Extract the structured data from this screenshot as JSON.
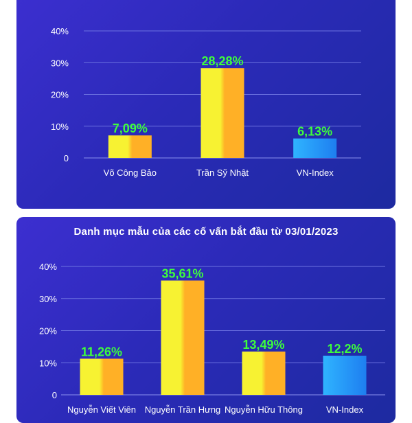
{
  "colors": {
    "card_bg_start": "#3c2fd0",
    "card_bg_end": "#1d2aa0",
    "data_label": "#3dfc3d",
    "bar_yellow_orange": [
      "#f7f232",
      "#ffb026"
    ],
    "bar_blue": [
      "#2fb4ff",
      "#1e7ef0"
    ]
  },
  "cards": [
    {
      "title": ""
    },
    {
      "title": "Danh mục mẫu của các cố vấn bắt đầu từ 03/01/2023"
    }
  ],
  "chart_data": [
    {
      "type": "bar",
      "title": "",
      "categories": [
        "Võ Công Bảo",
        "Trần Sỹ Nhật",
        "VN-Index"
      ],
      "values": [
        7.09,
        28.28,
        6.13
      ],
      "data_labels": [
        "7,09%",
        "28,28%",
        "6,13%"
      ],
      "bar_styles": [
        "yellow-orange",
        "yellow-orange",
        "blue"
      ],
      "yticks": [
        0,
        10,
        20,
        30,
        40
      ],
      "ytick_labels": [
        "0",
        "10%",
        "20%",
        "30%",
        "40%"
      ],
      "ylim": [
        0,
        40
      ],
      "grid": true,
      "xlabel": "",
      "ylabel": ""
    },
    {
      "type": "bar",
      "title": "Danh mục mẫu của các cố vấn bắt đầu từ 03/01/2023",
      "categories": [
        "Nguyễn Viết Viên",
        "Nguyễn Trần Hưng",
        "Nguyễn Hữu Thông",
        "VN-Index"
      ],
      "values": [
        11.26,
        35.61,
        13.49,
        12.2
      ],
      "data_labels": [
        "11,26%",
        "35,61%",
        "13,49%",
        "12,2%"
      ],
      "bar_styles": [
        "yellow-orange",
        "yellow-orange",
        "yellow-orange",
        "blue"
      ],
      "yticks": [
        0,
        10,
        20,
        30,
        40
      ],
      "ytick_labels": [
        "0",
        "10%",
        "20%",
        "30%",
        "40%"
      ],
      "ylim": [
        0,
        40
      ],
      "grid": true,
      "xlabel": "",
      "ylabel": ""
    }
  ]
}
